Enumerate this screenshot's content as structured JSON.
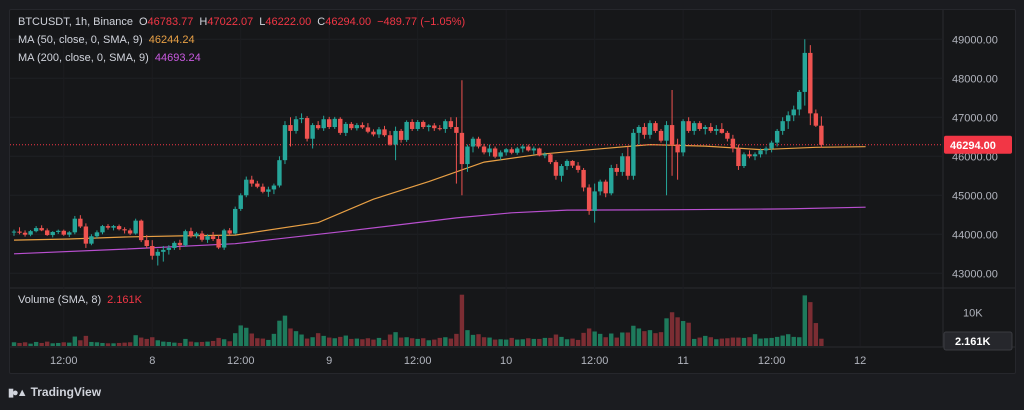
{
  "header": {
    "symbol": "BTCUSDT, 1h, Binance",
    "o_label": "O",
    "o_value": "46783.77",
    "h_label": "H",
    "h_value": "47022.07",
    "l_label": "L",
    "l_value": "46222.00",
    "c_label": "C",
    "c_value": "46294.00",
    "change": "−489.77 (−1.05%)",
    "ma50_label": "MA (50, close, 0, SMA, 9)",
    "ma50_value": "46244.24",
    "ma200_label": "MA (200, close, 0, SMA, 9)",
    "ma200_value": "44693.24",
    "volume_label": "Volume (SMA, 8)",
    "volume_value": "2.161K"
  },
  "brand": {
    "name": "TradingView",
    "icon": "tradingview-logo"
  },
  "colors": {
    "up": "#26a69a",
    "down": "#ef5350",
    "ma50": "#e8a045",
    "ma200": "#b84fcf",
    "price_badge": "#f23645",
    "volume_up": "#1e7a5c",
    "volume_down": "#7c2d33"
  },
  "chart_data": {
    "type": "candlestick",
    "symbol": "BTCUSDT",
    "interval": "1h",
    "exchange": "Binance",
    "price_axis": {
      "ticks": [
        43000,
        44000,
        45000,
        46000,
        47000,
        48000,
        49000
      ],
      "tick_labels": [
        "43000.00",
        "44000.00",
        "45000.00",
        "46000.00",
        "47000.00",
        "48000.00",
        "49000.00"
      ],
      "range": [
        42700,
        49750
      ]
    },
    "volume_axis": {
      "ticks": [
        10000
      ],
      "tick_labels": [
        "10K"
      ],
      "range": [
        0,
        16000
      ]
    },
    "time_axis": {
      "tick_labels": [
        "12:00",
        "8",
        "12:00",
        "9",
        "12:00",
        "10",
        "12:00",
        "11",
        "12:00",
        "12"
      ],
      "tick_candle_index": [
        9,
        25,
        41,
        57,
        73,
        89,
        105,
        121,
        137,
        153
      ],
      "first_candle": "7 06:00",
      "last_candle": "11 16:00"
    },
    "last_price": 46294.0,
    "last_price_label": "46294.00",
    "last_volume_label": "2.161K",
    "candles": [
      [
        44045,
        44120,
        43960,
        44070
      ],
      [
        44070,
        44180,
        44000,
        44040
      ],
      [
        44040,
        44100,
        43940,
        43990
      ],
      [
        43990,
        44110,
        43950,
        44080
      ],
      [
        44080,
        44210,
        44050,
        44160
      ],
      [
        44160,
        44230,
        44080,
        44100
      ],
      [
        44100,
        44150,
        43960,
        43980
      ],
      [
        43980,
        44080,
        43920,
        44060
      ],
      [
        44060,
        44120,
        44010,
        44090
      ],
      [
        44090,
        44120,
        43960,
        43990
      ],
      [
        43990,
        44080,
        43930,
        44050
      ],
      [
        44050,
        44470,
        44000,
        44400
      ],
      [
        44400,
        44490,
        44160,
        44200
      ],
      [
        44200,
        44280,
        43650,
        43760
      ],
      [
        43760,
        44000,
        43720,
        43950
      ],
      [
        43950,
        44100,
        43900,
        44050
      ],
      [
        44050,
        44240,
        44000,
        44210
      ],
      [
        44210,
        44260,
        44120,
        44170
      ],
      [
        44170,
        44240,
        44100,
        44210
      ],
      [
        44210,
        44250,
        44100,
        44130
      ],
      [
        44130,
        44180,
        44020,
        44100
      ],
      [
        44100,
        44150,
        43980,
        44020
      ],
      [
        44020,
        44400,
        43990,
        44350
      ],
      [
        44350,
        44380,
        43800,
        43850
      ],
      [
        43850,
        43980,
        43640,
        43700
      ],
      [
        43700,
        43850,
        43350,
        43450
      ],
      [
        43450,
        43620,
        43200,
        43550
      ],
      [
        43550,
        43700,
        43300,
        43600
      ],
      [
        43600,
        43720,
        43480,
        43650
      ],
      [
        43650,
        43820,
        43600,
        43780
      ],
      [
        43780,
        43860,
        43600,
        43720
      ],
      [
        43720,
        44120,
        43680,
        44080
      ],
      [
        44080,
        44170,
        43910,
        43960
      ],
      [
        43960,
        44060,
        43900,
        44020
      ],
      [
        44020,
        44090,
        43810,
        43860
      ],
      [
        43860,
        44000,
        43780,
        43950
      ],
      [
        43950,
        44060,
        43830,
        43880
      ],
      [
        43880,
        43980,
        43620,
        43660
      ],
      [
        43660,
        44140,
        43600,
        44100
      ],
      [
        44100,
        44160,
        43980,
        44020
      ],
      [
        44020,
        44710,
        43990,
        44650
      ],
      [
        44650,
        45050,
        44600,
        45000
      ],
      [
        45000,
        45480,
        44950,
        45400
      ],
      [
        45400,
        45500,
        45220,
        45300
      ],
      [
        45300,
        45370,
        45180,
        45220
      ],
      [
        45220,
        45300,
        45050,
        45090
      ],
      [
        45090,
        45220,
        44960,
        45150
      ],
      [
        45150,
        45300,
        45030,
        45250
      ],
      [
        45250,
        46000,
        45200,
        45900
      ],
      [
        45900,
        46900,
        45800,
        46800
      ],
      [
        46800,
        47000,
        46250,
        46650
      ],
      [
        46650,
        47030,
        46580,
        46950
      ],
      [
        46950,
        47100,
        46850,
        46980
      ],
      [
        46980,
        47030,
        46380,
        46450
      ],
      [
        46450,
        46850,
        46200,
        46800
      ],
      [
        46800,
        46900,
        46680,
        46720
      ],
      [
        46720,
        47040,
        46650,
        46950
      ],
      [
        46950,
        47010,
        46700,
        46750
      ],
      [
        46750,
        47010,
        46700,
        46960
      ],
      [
        46960,
        47000,
        46550,
        46600
      ],
      [
        46600,
        46880,
        46520,
        46830
      ],
      [
        46830,
        46880,
        46670,
        46720
      ],
      [
        46720,
        46850,
        46660,
        46800
      ],
      [
        46800,
        46870,
        46700,
        46740
      ],
      [
        46740,
        46850,
        46590,
        46630
      ],
      [
        46630,
        46690,
        46510,
        46560
      ],
      [
        46560,
        46750,
        46470,
        46690
      ],
      [
        46690,
        46780,
        46500,
        46540
      ],
      [
        46540,
        46650,
        46270,
        46300
      ],
      [
        46300,
        46760,
        45900,
        46650
      ],
      [
        46650,
        46700,
        46350,
        46420
      ],
      [
        46420,
        46920,
        46370,
        46880
      ],
      [
        46880,
        46950,
        46650,
        46700
      ],
      [
        46700,
        46930,
        46650,
        46880
      ],
      [
        46880,
        46920,
        46700,
        46750
      ],
      [
        46750,
        46820,
        46640,
        46790
      ],
      [
        46790,
        46850,
        46650,
        46720
      ],
      [
        46720,
        46800,
        46660,
        46700
      ],
      [
        46700,
        46950,
        46600,
        46900
      ],
      [
        46900,
        47000,
        46700,
        46750
      ],
      [
        46750,
        47000,
        45300,
        46600
      ],
      [
        46600,
        47950,
        45000,
        45800
      ],
      [
        45800,
        46300,
        45600,
        46250
      ],
      [
        46250,
        46500,
        46100,
        46450
      ],
      [
        46450,
        46500,
        46200,
        46250
      ],
      [
        46250,
        46320,
        46050,
        46100
      ],
      [
        46100,
        46300,
        46000,
        46200
      ],
      [
        46200,
        46250,
        45950,
        45990
      ],
      [
        45990,
        46150,
        45900,
        46100
      ],
      [
        46100,
        46210,
        46020,
        46180
      ],
      [
        46180,
        46230,
        46050,
        46090
      ],
      [
        46090,
        46240,
        46040,
        46200
      ],
      [
        46200,
        46300,
        46100,
        46250
      ],
      [
        46250,
        46300,
        46120,
        46150
      ],
      [
        46150,
        46250,
        46050,
        46200
      ],
      [
        46200,
        46220,
        46000,
        46020
      ],
      [
        46020,
        46100,
        45950,
        46050
      ],
      [
        46050,
        46080,
        45800,
        45850
      ],
      [
        45850,
        45900,
        45400,
        45500
      ],
      [
        45500,
        45800,
        45350,
        45750
      ],
      [
        45750,
        45920,
        45650,
        45880
      ],
      [
        45880,
        45900,
        45700,
        45760
      ],
      [
        45760,
        45850,
        45580,
        45650
      ],
      [
        45650,
        45700,
        45100,
        45200
      ],
      [
        45200,
        45280,
        44500,
        44600
      ],
      [
        44600,
        45300,
        44300,
        45100
      ],
      [
        45100,
        45400,
        45000,
        45350
      ],
      [
        45350,
        45400,
        44950,
        45050
      ],
      [
        45050,
        45780,
        45000,
        45700
      ],
      [
        45700,
        45800,
        45500,
        45600
      ],
      [
        45600,
        46080,
        45500,
        46000
      ],
      [
        46000,
        46250,
        45400,
        45500
      ],
      [
        45500,
        46700,
        45400,
        46600
      ],
      [
        46600,
        46800,
        46300,
        46750
      ],
      [
        46750,
        46850,
        46450,
        46550
      ],
      [
        46550,
        46920,
        46450,
        46850
      ],
      [
        46850,
        46900,
        46600,
        46650
      ],
      [
        46650,
        46700,
        46350,
        46400
      ],
      [
        46400,
        46900,
        45000,
        46800
      ],
      [
        46800,
        47700,
        45500,
        46300
      ],
      [
        46300,
        46450,
        45400,
        46100
      ],
      [
        46100,
        46950,
        46000,
        46900
      ],
      [
        46900,
        47000,
        46600,
        46650
      ],
      [
        46650,
        46900,
        46550,
        46850
      ],
      [
        46850,
        46900,
        46650,
        46700
      ],
      [
        46700,
        46800,
        46560,
        46750
      ],
      [
        46750,
        46850,
        46600,
        46650
      ],
      [
        46650,
        46800,
        46550,
        46700
      ],
      [
        46700,
        46850,
        46580,
        46600
      ],
      [
        46600,
        46650,
        46380,
        46450
      ],
      [
        46450,
        46550,
        46100,
        46200
      ],
      [
        46200,
        46300,
        45650,
        45750
      ],
      [
        45750,
        46100,
        45700,
        46050
      ],
      [
        46050,
        46150,
        45950,
        46000
      ],
      [
        46000,
        46100,
        45900,
        46050
      ],
      [
        46050,
        46200,
        45970,
        46150
      ],
      [
        46150,
        46250,
        46050,
        46200
      ],
      [
        46200,
        46400,
        46100,
        46350
      ],
      [
        46350,
        46700,
        46250,
        46650
      ],
      [
        46650,
        47000,
        46550,
        46900
      ],
      [
        46900,
        47150,
        46700,
        47050
      ],
      [
        47050,
        47300,
        46900,
        47200
      ],
      [
        47200,
        47700,
        47050,
        47650
      ],
      [
        47650,
        49000,
        47300,
        48650
      ],
      [
        48650,
        48850,
        46800,
        47100
      ],
      [
        47100,
        47200,
        46750,
        46783.77
      ],
      [
        46783.77,
        47022.07,
        46222,
        46294
      ]
    ],
    "volumes": [
      1100,
      900,
      1100,
      700,
      1200,
      900,
      1300,
      800,
      900,
      1100,
      1000,
      2800,
      1700,
      3000,
      1200,
      1100,
      900,
      800,
      800,
      900,
      1000,
      1100,
      3200,
      2500,
      2100,
      2600,
      1700,
      1300,
      1200,
      1000,
      900,
      2100,
      1300,
      1100,
      1200,
      1300,
      1500,
      2400,
      2000,
      1400,
      3800,
      6100,
      5400,
      3700,
      2300,
      2200,
      1800,
      3600,
      7500,
      9000,
      5200,
      4400,
      3400,
      2200,
      2600,
      3800,
      3000,
      2500,
      2300,
      2700,
      3100,
      2100,
      2200,
      2000,
      2300,
      1900,
      2400,
      1800,
      3400,
      4100,
      2500,
      2600,
      2300,
      2100,
      2300,
      1700,
      1900,
      2400,
      2600,
      2200,
      3600,
      15200,
      4700,
      3300,
      3500,
      2600,
      2500,
      1900,
      2000,
      1900,
      2400,
      1900,
      2000,
      2300,
      2100,
      2100,
      2400,
      2400,
      3400,
      2700,
      2000,
      2200,
      1800,
      3900,
      5200,
      4300,
      3600,
      2600,
      3700,
      2500,
      4000,
      4000,
      6000,
      5200,
      4400,
      4700,
      3800,
      4100,
      8200,
      10000,
      8500,
      7400,
      6900,
      2100,
      2500,
      3000,
      2600,
      2000,
      2200,
      2300,
      2500,
      2500,
      2400,
      2600,
      3500,
      2200,
      2300,
      2400,
      2700,
      3100,
      3500,
      2700,
      2600,
      15000,
      13000,
      6800,
      2161
    ],
    "ma50": [
      [
        0,
        43850
      ],
      [
        10,
        43880
      ],
      [
        20,
        43930
      ],
      [
        30,
        43960
      ],
      [
        40,
        43980
      ],
      [
        55,
        44300
      ],
      [
        65,
        44900
      ],
      [
        75,
        45350
      ],
      [
        85,
        45850
      ],
      [
        95,
        46050
      ],
      [
        105,
        46180
      ],
      [
        115,
        46300
      ],
      [
        125,
        46260
      ],
      [
        135,
        46170
      ],
      [
        145,
        46230
      ],
      [
        154,
        46244.24
      ]
    ],
    "ma200": [
      [
        0,
        43500
      ],
      [
        20,
        43620
      ],
      [
        40,
        43760
      ],
      [
        60,
        44080
      ],
      [
        80,
        44420
      ],
      [
        90,
        44550
      ],
      [
        100,
        44620
      ],
      [
        120,
        44630
      ],
      [
        140,
        44650
      ],
      [
        154,
        44693.24
      ]
    ]
  }
}
